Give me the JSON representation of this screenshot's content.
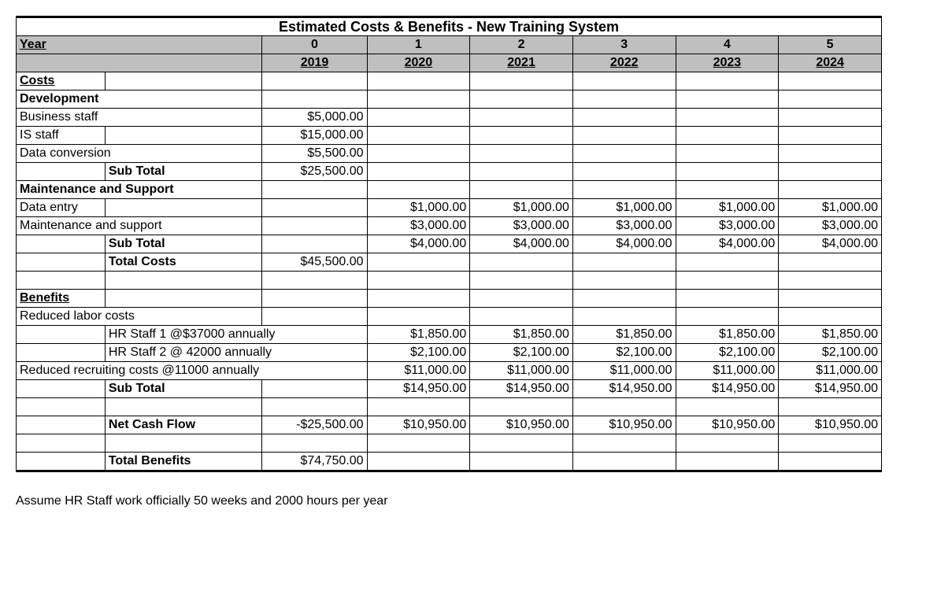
{
  "title": "Estimated Costs & Benefits - New Training System",
  "header": {
    "yearLabel": "Year",
    "periods": [
      "0",
      "1",
      "2",
      "3",
      "4",
      "5"
    ],
    "years": [
      "2019",
      "2020",
      "2021",
      "2022",
      "2023",
      "2024"
    ]
  },
  "costs": {
    "heading": "Costs",
    "development": {
      "label": "Development",
      "rows": {
        "businessStaff": {
          "label": "Business staff",
          "v0": "$5,000.00"
        },
        "isStaff": {
          "label": "IS staff",
          "v0": "$15,000.00"
        },
        "dataConversion": {
          "label": "Data conversion",
          "v0": "$5,500.00"
        }
      },
      "subTotal": {
        "label": "Sub Total",
        "v0": "$25,500.00"
      }
    },
    "maintenance": {
      "label": "Maintenance and Support",
      "rows": {
        "dataEntry": {
          "label": "Data entry",
          "v1": "$1,000.00",
          "v2": "$1,000.00",
          "v3": "$1,000.00",
          "v4": "$1,000.00",
          "v5": "$1,000.00"
        },
        "maint": {
          "label": "Maintenance and support",
          "v1": "$3,000.00",
          "v2": "$3,000.00",
          "v3": "$3,000.00",
          "v4": "$3,000.00",
          "v5": "$3,000.00"
        }
      },
      "subTotal": {
        "label": "Sub Total",
        "v1": "$4,000.00",
        "v2": "$4,000.00",
        "v3": "$4,000.00",
        "v4": "$4,000.00",
        "v5": "$4,000.00"
      },
      "totalCosts": {
        "label": "Total Costs",
        "v0": "$45,500.00"
      }
    }
  },
  "benefits": {
    "heading": "Benefits",
    "reducedLabor": {
      "label": "Reduced labor costs",
      "hr1": {
        "label": "HR Staff 1 @$37000 annually",
        "v1": "$1,850.00",
        "v2": "$1,850.00",
        "v3": "$1,850.00",
        "v4": "$1,850.00",
        "v5": "$1,850.00"
      },
      "hr2": {
        "label": "HR Staff 2 @ 42000  annually",
        "v1": "$2,100.00",
        "v2": "$2,100.00",
        "v3": "$2,100.00",
        "v4": "$2,100.00",
        "v5": "$2,100.00"
      }
    },
    "recruiting": {
      "label": "Reduced recruiting costs @11000 annually",
      "v1": "$11,000.00",
      "v2": "$11,000.00",
      "v3": "$11,000.00",
      "v4": "$11,000.00",
      "v5": "$11,000.00"
    },
    "subTotal": {
      "label": "Sub Total",
      "v1": "$14,950.00",
      "v2": "$14,950.00",
      "v3": "$14,950.00",
      "v4": "$14,950.00",
      "v5": "$14,950.00"
    },
    "netCashFlow": {
      "label": "Net Cash Flow",
      "v0": "-$25,500.00",
      "v1": "$10,950.00",
      "v2": "$10,950.00",
      "v3": "$10,950.00",
      "v4": "$10,950.00",
      "v5": "$10,950.00"
    },
    "totalBenefits": {
      "label": "Total Benefits",
      "v0": "$74,750.00"
    }
  },
  "note": "Assume HR Staff work officially  50 weeks and 2000  hours per year",
  "colors": {
    "headerBg": "#bfbfbf",
    "border": "#000000"
  }
}
